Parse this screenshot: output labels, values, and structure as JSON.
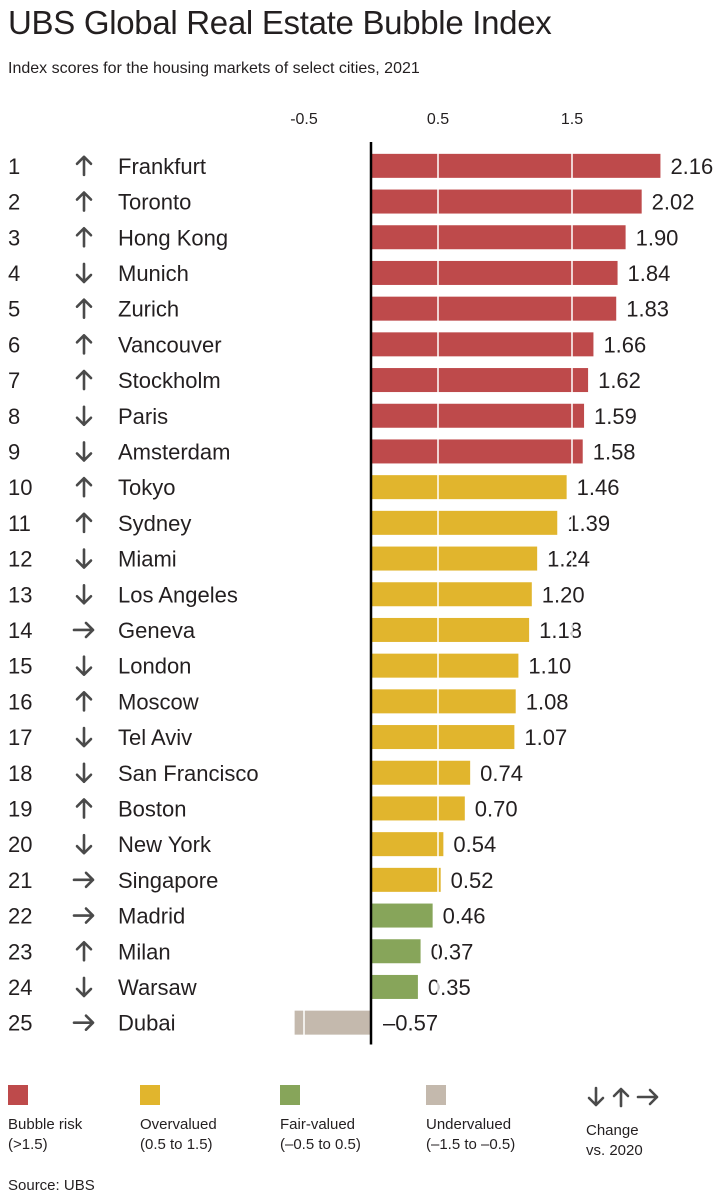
{
  "header": {
    "title": "UBS Global Real Estate Bubble Index",
    "subtitle": "Index scores for the housing markets of select cities, 2021"
  },
  "chart_data": {
    "type": "bar",
    "orientation": "horizontal",
    "title": "UBS Global Real Estate Bubble Index",
    "subtitle": "Index scores for the housing markets of select cities, 2021",
    "x_tick_labels": [
      "-0.5",
      "0.5",
      "1.5"
    ],
    "x_ticks": [
      -0.5,
      0.5,
      1.5
    ],
    "gridlines": "vertical-white-over-bars",
    "rows": [
      {
        "rank": "1",
        "change": "up",
        "city": "Frankfurt",
        "value": 2.16,
        "label": "2.16",
        "category": "bubble"
      },
      {
        "rank": "2",
        "change": "up",
        "city": "Toronto",
        "value": 2.02,
        "label": "2.02",
        "category": "bubble"
      },
      {
        "rank": "3",
        "change": "up",
        "city": "Hong Kong",
        "value": 1.9,
        "label": "1.90",
        "category": "bubble"
      },
      {
        "rank": "4",
        "change": "down",
        "city": "Munich",
        "value": 1.84,
        "label": "1.84",
        "category": "bubble"
      },
      {
        "rank": "5",
        "change": "up",
        "city": "Zurich",
        "value": 1.83,
        "label": "1.83",
        "category": "bubble"
      },
      {
        "rank": "6",
        "change": "up",
        "city": "Vancouver",
        "value": 1.66,
        "label": "1.66",
        "category": "bubble"
      },
      {
        "rank": "7",
        "change": "up",
        "city": "Stockholm",
        "value": 1.62,
        "label": "1.62",
        "category": "bubble"
      },
      {
        "rank": "8",
        "change": "down",
        "city": "Paris",
        "value": 1.59,
        "label": "1.59",
        "category": "bubble"
      },
      {
        "rank": "9",
        "change": "down",
        "city": "Amsterdam",
        "value": 1.58,
        "label": "1.58",
        "category": "bubble"
      },
      {
        "rank": "10",
        "change": "up",
        "city": "Tokyo",
        "value": 1.46,
        "label": "1.46",
        "category": "overvalued"
      },
      {
        "rank": "11",
        "change": "up",
        "city": "Sydney",
        "value": 1.39,
        "label": "1.39",
        "category": "overvalued"
      },
      {
        "rank": "12",
        "change": "down",
        "city": "Miami",
        "value": 1.24,
        "label": "1.24",
        "category": "overvalued"
      },
      {
        "rank": "13",
        "change": "down",
        "city": "Los Angeles",
        "value": 1.2,
        "label": "1.20",
        "category": "overvalued"
      },
      {
        "rank": "14",
        "change": "right",
        "city": "Geneva",
        "value": 1.18,
        "label": "1.18",
        "category": "overvalued"
      },
      {
        "rank": "15",
        "change": "down",
        "city": "London",
        "value": 1.1,
        "label": "1.10",
        "category": "overvalued"
      },
      {
        "rank": "16",
        "change": "up",
        "city": "Moscow",
        "value": 1.08,
        "label": "1.08",
        "category": "overvalued"
      },
      {
        "rank": "17",
        "change": "down",
        "city": "Tel Aviv",
        "value": 1.07,
        "label": "1.07",
        "category": "overvalued"
      },
      {
        "rank": "18",
        "change": "down",
        "city": "San Francisco",
        "value": 0.74,
        "label": "0.74",
        "category": "overvalued"
      },
      {
        "rank": "19",
        "change": "up",
        "city": "Boston",
        "value": 0.7,
        "label": "0.70",
        "category": "overvalued"
      },
      {
        "rank": "20",
        "change": "down",
        "city": "New York",
        "value": 0.54,
        "label": "0.54",
        "category": "overvalued"
      },
      {
        "rank": "21",
        "change": "right",
        "city": "Singapore",
        "value": 0.52,
        "label": "0.52",
        "category": "overvalued"
      },
      {
        "rank": "22",
        "change": "right",
        "city": "Madrid",
        "value": 0.46,
        "label": "0.46",
        "category": "fair"
      },
      {
        "rank": "23",
        "change": "up",
        "city": "Milan",
        "value": 0.37,
        "label": "0.37",
        "category": "fair"
      },
      {
        "rank": "24",
        "change": "down",
        "city": "Warsaw",
        "value": 0.35,
        "label": "0.35",
        "category": "fair"
      },
      {
        "rank": "25",
        "change": "right",
        "city": "Dubai",
        "value": -0.57,
        "label": "–0.57",
        "category": "undervalued"
      }
    ],
    "colors": {
      "bubble": "#be4a4b",
      "overvalued": "#e1b52d",
      "fair": "#87a55a",
      "undervalued": "#c4b9ad",
      "arrow": "#4a4a4a"
    }
  },
  "legend": {
    "items": [
      {
        "key": "bubble",
        "label": "Bubble risk\n(>1.5)"
      },
      {
        "key": "overvalued",
        "label": "Overvalued\n(0.5 to 1.5)"
      },
      {
        "key": "fair",
        "label": "Fair-valued\n(–0.5 to 0.5)"
      },
      {
        "key": "undervalued",
        "label": "Undervalued\n(–1.5 to –0.5)"
      }
    ],
    "change_label": "Change\nvs. 2020"
  },
  "source": "Source: UBS"
}
